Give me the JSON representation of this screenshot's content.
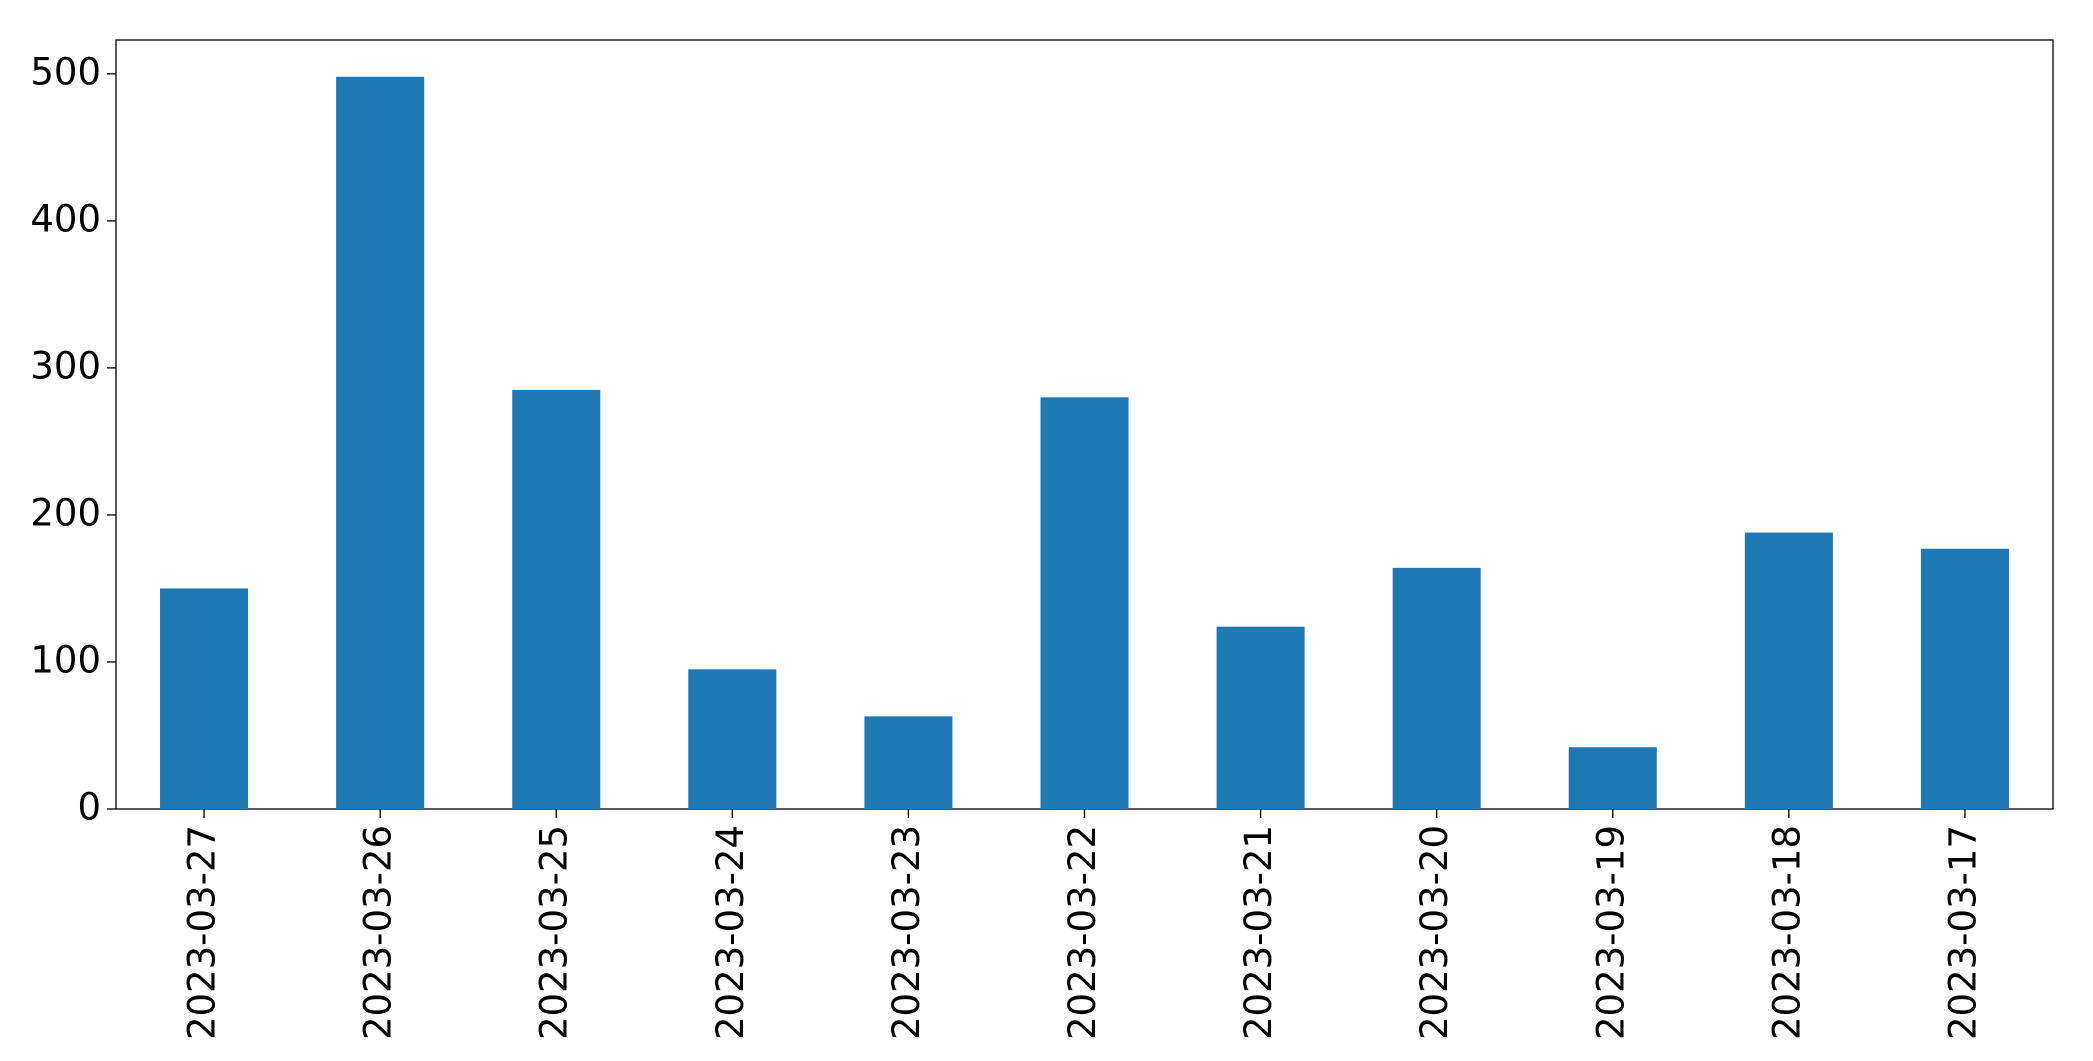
{
  "chart_data": {
    "type": "bar",
    "categories": [
      "2023-03-27",
      "2023-03-26",
      "2023-03-25",
      "2023-03-24",
      "2023-03-23",
      "2023-03-22",
      "2023-03-21",
      "2023-03-20",
      "2023-03-19",
      "2023-03-18",
      "2023-03-17"
    ],
    "values": [
      150,
      498,
      285,
      95,
      63,
      280,
      124,
      164,
      42,
      188,
      177
    ],
    "color": "#1f77b4",
    "ylim": [
      0,
      523
    ],
    "yticks": [
      0,
      100,
      200,
      300,
      400,
      500
    ],
    "grid": false
  }
}
